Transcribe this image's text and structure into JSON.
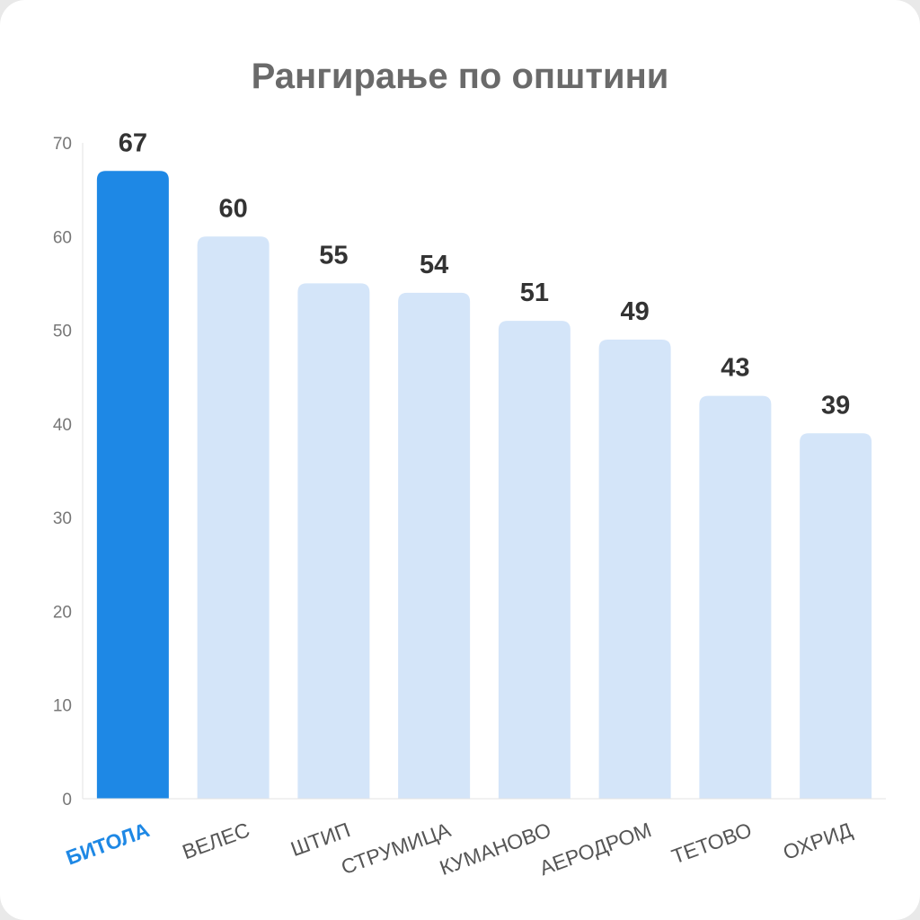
{
  "chart_data": {
    "type": "bar",
    "title": "Рангирање по општини",
    "categories": [
      "БИТОЛА",
      "ВЕЛЕС",
      "ШТИП",
      "СТРУМИЦА",
      "КУМАНОВО",
      "АЕРОДРОМ",
      "ТЕТОВО",
      "ОХРИД"
    ],
    "values": [
      67,
      60,
      55,
      54,
      51,
      49,
      43,
      39
    ],
    "highlight_index": 0,
    "ylim": [
      0,
      70
    ],
    "yticks": [
      0,
      10,
      20,
      30,
      40,
      50,
      60,
      70
    ],
    "xlabel": "",
    "ylabel": "",
    "grid": false,
    "data_labels": true,
    "colors": {
      "highlight_bar": "#1e88e5",
      "bar": "#d4e5f9",
      "highlight_label": "#1e88e5",
      "axis": "#e3e3e3"
    }
  }
}
